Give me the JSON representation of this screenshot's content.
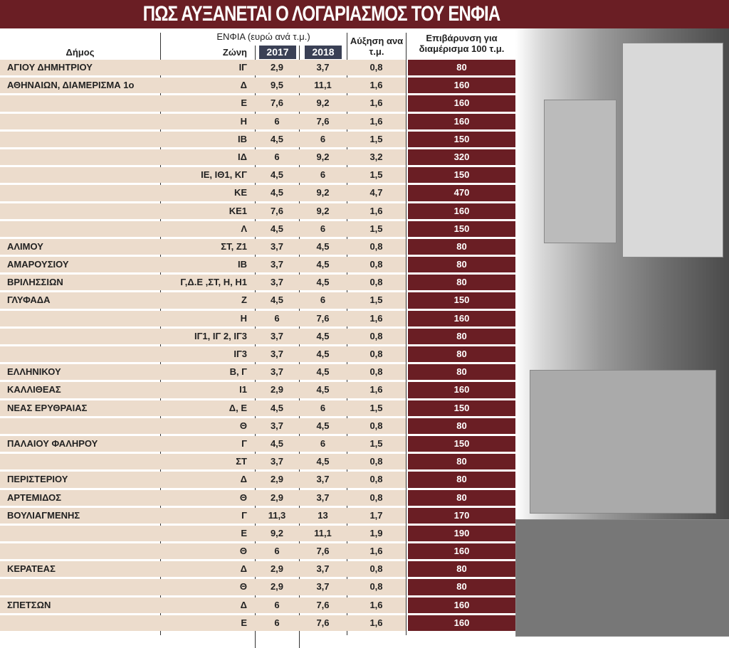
{
  "title": "ΠΩΣ ΑΥΞΑΝΕΤΑΙ Ο ΛΟΓΑΡΙΑΣΜΟΣ ΤΟΥ ΕΝΦΙΑ",
  "colors": {
    "accent": "#6a1e24",
    "row_bg": "#ecdccc",
    "year_badge": "#3a4055"
  },
  "chart_data": {
    "type": "table",
    "headers": {
      "municipality": "Δήμος",
      "zone": "Ζώνη",
      "group": "ΕΝΦΙΑ (ευρώ ανά τ.μ.)",
      "y2017": "2017",
      "y2018": "2018",
      "increase": "Αύξηση ανα τ.μ.",
      "burden": "Επιβάρυνση για διαμέρισμα 100 τ.μ."
    },
    "rows": [
      [
        "ΑΓΙΟΥ ΔΗΜΗΤΡΙΟΥ",
        "ΙΓ",
        "2,9",
        "3,7",
        "0,8",
        "80"
      ],
      [
        "ΑΘΗΝΑΙΩΝ, ΔΙΑΜΕΡΙΣΜΑ 1ο",
        "Δ",
        "9,5",
        "11,1",
        "1,6",
        "160"
      ],
      [
        "",
        "Ε",
        "7,6",
        "9,2",
        "1,6",
        "160"
      ],
      [
        "",
        "Η",
        "6",
        "7,6",
        "1,6",
        "160"
      ],
      [
        "",
        "ΙΒ",
        "4,5",
        "6",
        "1,5",
        "150"
      ],
      [
        "",
        "ΙΔ",
        "6",
        "9,2",
        "3,2",
        "320"
      ],
      [
        "",
        "ΙΕ, ΙΘ1, ΚΓ",
        "4,5",
        "6",
        "1,5",
        "150"
      ],
      [
        "",
        "ΚΕ",
        "4,5",
        "9,2",
        "4,7",
        "470"
      ],
      [
        "",
        "ΚΕ1",
        "7,6",
        "9,2",
        "1,6",
        "160"
      ],
      [
        "",
        "Λ",
        "4,5",
        "6",
        "1,5",
        "150"
      ],
      [
        "ΑΛΙΜΟΥ",
        "ΣΤ, Ζ1",
        "3,7",
        "4,5",
        "0,8",
        "80"
      ],
      [
        "ΑΜΑΡΟΥΣΙΟΥ",
        "ΙΒ",
        "3,7",
        "4,5",
        "0,8",
        "80"
      ],
      [
        "ΒΡΙΛΗΣΣΙΩΝ",
        "Γ,Δ.Ε ,ΣΤ, Η, Η1",
        "3,7",
        "4,5",
        "0,8",
        "80"
      ],
      [
        "ΓΛΥΦΑΔΑ",
        "Ζ",
        "4,5",
        "6",
        "1,5",
        "150"
      ],
      [
        "",
        "Η",
        "6",
        "7,6",
        "1,6",
        "160"
      ],
      [
        "",
        "ΙΓ1, ΙΓ 2, ΙΓ3",
        "3,7",
        "4,5",
        "0,8",
        "80"
      ],
      [
        "",
        "ΙΓ3",
        "3,7",
        "4,5",
        "0,8",
        "80"
      ],
      [
        "ΕΛΛΗΝΙΚΟΥ",
        "Β, Γ",
        "3,7",
        "4,5",
        "0,8",
        "80"
      ],
      [
        "ΚΑΛΛΙΘΕΑΣ",
        "Ι1",
        "2,9",
        "4,5",
        "1,6",
        "160"
      ],
      [
        "ΝΕΑΣ ΕΡΥΘΡΑΙΑΣ",
        "Δ, Ε",
        "4,5",
        "6",
        "1,5",
        "150"
      ],
      [
        "",
        "Θ",
        "3,7",
        "4,5",
        "0,8",
        "80"
      ],
      [
        "ΠΑΛΑΙΟΥ ΦΑΛΗΡΟΥ",
        "Γ",
        "4,5",
        "6",
        "1,5",
        "150"
      ],
      [
        "",
        "ΣΤ",
        "3,7",
        "4,5",
        "0,8",
        "80"
      ],
      [
        "ΠΕΡΙΣΤΕΡΙΟΥ",
        "Δ",
        "2,9",
        "3,7",
        "0,8",
        "80"
      ],
      [
        "ΑΡΤΕΜΙΔΟΣ",
        "Θ",
        "2,9",
        "3,7",
        "0,8",
        "80"
      ],
      [
        "ΒΟΥΛΙΑΓΜΕΝΗΣ",
        "Γ",
        "11,3",
        "13",
        "1,7",
        "170"
      ],
      [
        "",
        "Ε",
        "9,2",
        "11,1",
        "1,9",
        "190"
      ],
      [
        "",
        "Θ",
        "6",
        "7,6",
        "1,6",
        "160"
      ],
      [
        "ΚΕΡΑΤΕΑΣ",
        "Δ",
        "2,9",
        "3,7",
        "0,8",
        "80"
      ],
      [
        "",
        "Θ",
        "2,9",
        "3,7",
        "0,8",
        "80"
      ],
      [
        "ΣΠΕΤΣΩΝ",
        "Δ",
        "6",
        "7,6",
        "1,6",
        "160"
      ],
      [
        "",
        "Ε",
        "6",
        "7,6",
        "1,6",
        "160"
      ]
    ]
  }
}
